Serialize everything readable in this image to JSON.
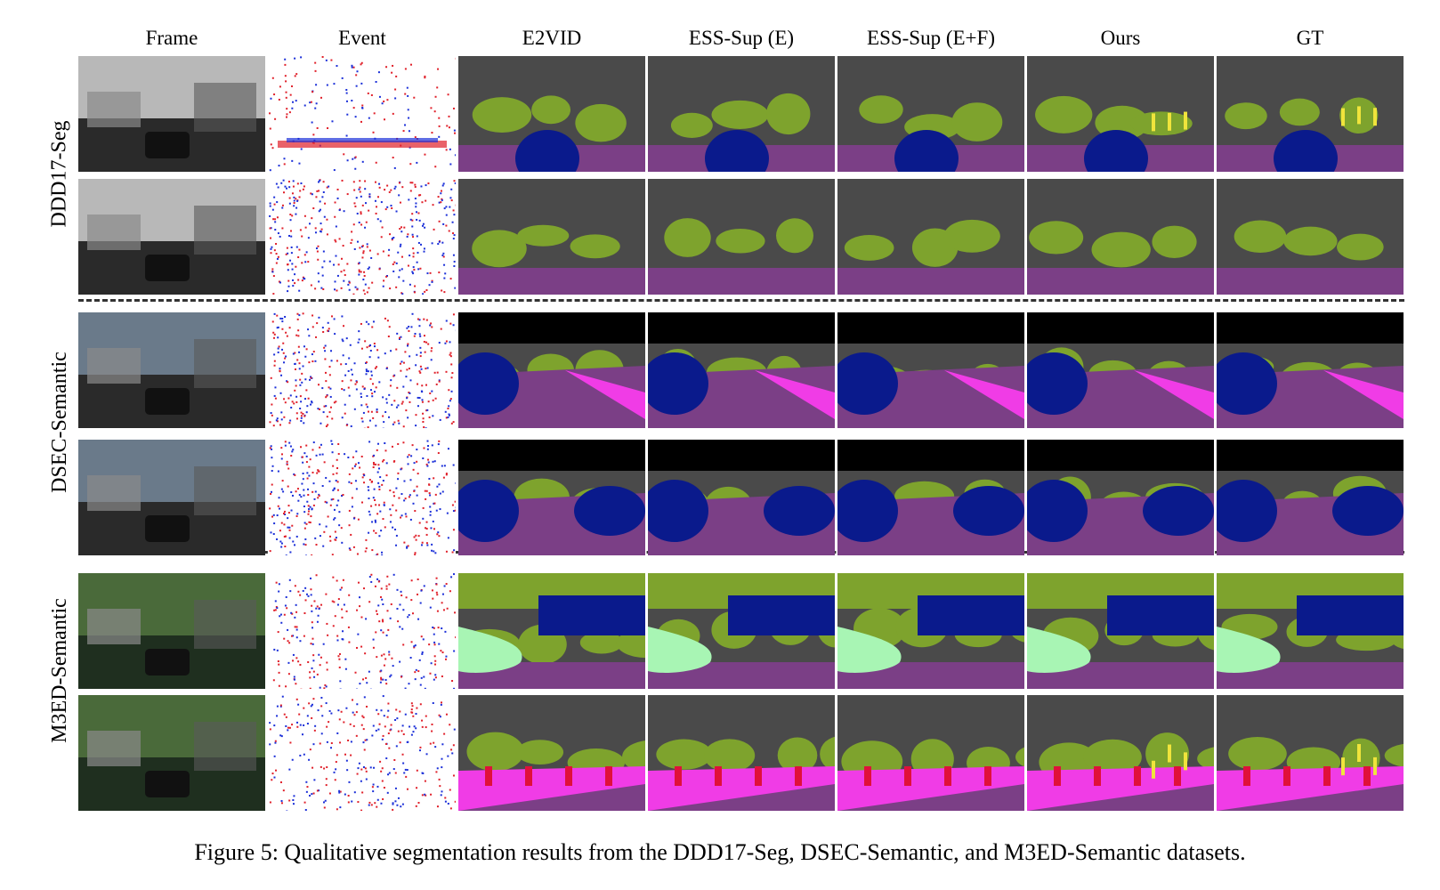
{
  "figure": {
    "columns": [
      "Frame",
      "Event",
      "E2VID",
      "ESS-Sup (E)",
      "ESS-Sup (E+F)",
      "Ours",
      "GT"
    ],
    "datasets": [
      {
        "name": "DDD17-Seg",
        "rows": [
          "ddd-a",
          "ddd-b"
        ]
      },
      {
        "name": "DSEC-Semantic",
        "rows": [
          "dsec-a",
          "dsec-b"
        ]
      },
      {
        "name": "M3ED-Semantic",
        "rows": [
          "m3ed-a",
          "m3ed-b"
        ]
      }
    ],
    "caption": "Figure 5: Qualitative segmentation results from the DDD17-Seg, DSEC-Semantic, and M3ED-Semantic datasets."
  },
  "palette": {
    "background": "#4a4a4a",
    "road": "#7b3f86",
    "vegetation": "#7ea32d",
    "vehicle": "#0a1a8c",
    "sky": "#000000",
    "building": "#5a5a5a",
    "sidewalk": "#f03ce6",
    "terrain": "#a8f5b4",
    "person": "#e0103a",
    "sign": "#f0e43c",
    "water_sky": "#4c8fc9",
    "event_pos": "#1b2fd8",
    "event_neg": "#e0202a"
  }
}
